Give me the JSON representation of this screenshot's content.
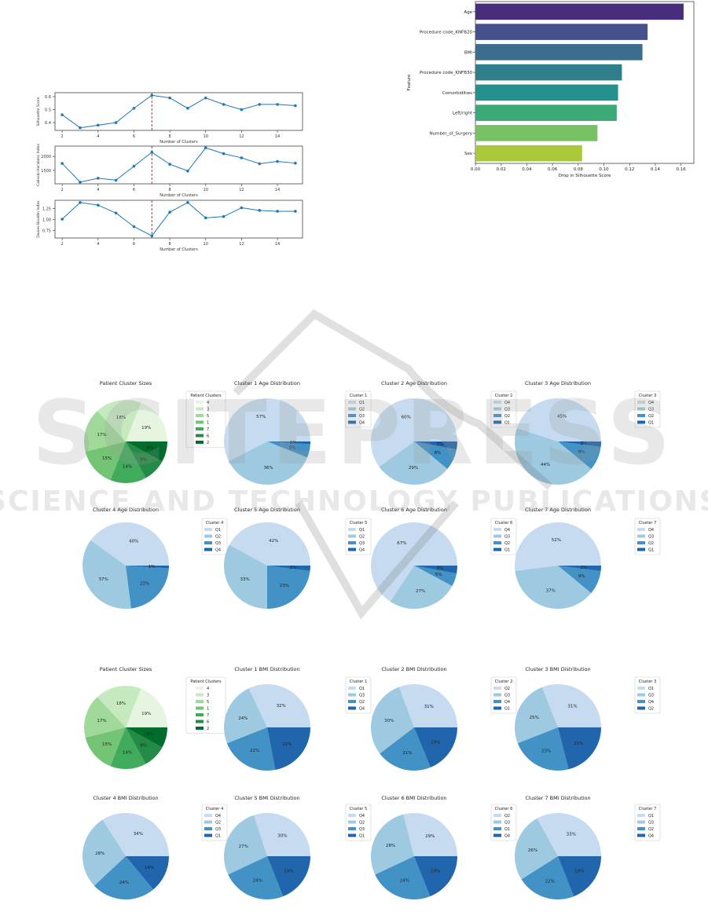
{
  "chart_data": [
    {
      "id": "cluster-metrics",
      "type": "line",
      "panels": [
        {
          "ylabel": "Silhouette Score",
          "xlabel": "Number of Clusters",
          "x": [
            2,
            3,
            4,
            5,
            6,
            7,
            8,
            9,
            10,
            11,
            12,
            13,
            14,
            15
          ],
          "values": [
            0.46,
            0.36,
            0.38,
            0.4,
            0.51,
            0.61,
            0.59,
            0.51,
            0.59,
            0.54,
            0.5,
            0.54,
            0.54,
            0.53
          ],
          "yticks": [
            0.4,
            0.5,
            0.6
          ],
          "ytick_labels": [
            "0.4",
            "0.5",
            "0.6"
          ],
          "ylim": [
            0.34,
            0.63
          ]
        },
        {
          "ylabel": "Calinski-Harabasz Index",
          "xlabel": "Number of Clusters",
          "x": [
            2,
            3,
            4,
            5,
            6,
            7,
            8,
            9,
            10,
            11,
            12,
            13,
            14,
            15
          ],
          "values": [
            1750,
            1080,
            1220,
            1150,
            1650,
            2150,
            1720,
            1480,
            2310,
            2100,
            1950,
            1740,
            1820,
            1760
          ],
          "yticks": [
            1500,
            2000
          ],
          "ytick_labels": [
            "1500",
            "2000"
          ],
          "ylim": [
            1020,
            2370
          ]
        },
        {
          "ylabel": "Davies-Bouldin Index",
          "xlabel": "Number of Clusters",
          "x": [
            2,
            3,
            4,
            5,
            6,
            7,
            8,
            9,
            10,
            11,
            12,
            13,
            14,
            15
          ],
          "values": [
            1.01,
            1.39,
            1.33,
            1.15,
            0.84,
            0.63,
            1.17,
            1.39,
            1.04,
            1.07,
            1.27,
            1.21,
            1.19,
            1.19
          ],
          "yticks": [
            0.75,
            1.0,
            1.25
          ],
          "ytick_labels": [
            "0.75",
            "1.00",
            "1.25"
          ],
          "ylim": [
            0.58,
            1.44
          ]
        }
      ],
      "xticks": [
        2,
        4,
        6,
        8,
        10,
        12,
        14
      ],
      "xlim": [
        1.6,
        15.4
      ],
      "optimal_k": 7,
      "line_color": "#1f77b4",
      "marker_line_color": "#d62728"
    },
    {
      "id": "feature-importance",
      "type": "bar",
      "orientation": "horizontal",
      "categories": [
        "Age",
        "Procedure code_KNFB20",
        "BMI",
        "Procedure code_KNFB30",
        "Comorbidities",
        "Left/right",
        "Number_of_Surgery",
        "Sex"
      ],
      "values": [
        0.162,
        0.134,
        0.13,
        0.114,
        0.111,
        0.11,
        0.095,
        0.083
      ],
      "colors": [
        "#472d7b",
        "#46508b",
        "#3b6d8c",
        "#2e7e8c",
        "#26908c",
        "#3ba877",
        "#79c264",
        "#abc73a"
      ],
      "xlabel": "Drop in Silhouette Score",
      "ylabel": "Feature",
      "xticks": [
        0.0,
        0.02,
        0.04,
        0.06,
        0.08,
        0.1,
        0.12,
        0.14,
        0.16
      ],
      "xtick_labels": [
        "0.00",
        "0.02",
        "0.04",
        "0.06",
        "0.08",
        "0.10",
        "0.12",
        "0.14",
        "0.16"
      ],
      "xlim": [
        0,
        0.17
      ]
    },
    {
      "id": "age-cluster-sizes",
      "type": "pie",
      "title": "Patient Cluster Sizes",
      "legend_title": "Patient Clusters",
      "labels": [
        "4",
        "3",
        "5",
        "1",
        "7",
        "6",
        "2"
      ],
      "values": [
        19,
        18,
        17,
        15,
        14,
        9,
        8
      ],
      "colors": [
        "#e5f5e0",
        "#c7e9c0",
        "#a1d99b",
        "#74c476",
        "#41ab5d",
        "#238b45",
        "#006d2c"
      ]
    },
    {
      "id": "age-c1",
      "type": "pie",
      "title": "Cluster 1 Age Distribution",
      "legend_title": "Cluster 1",
      "labels": [
        "Q1",
        "Q2",
        "Q3",
        "Q4"
      ],
      "values": [
        57,
        36,
        5,
        1
      ]
    },
    {
      "id": "age-c2",
      "type": "pie",
      "title": "Cluster 2 Age Distribution",
      "legend_title": "Cluster 2",
      "labels": [
        "Q4",
        "Q3",
        "Q2",
        "Q1"
      ],
      "values": [
        60,
        29,
        8,
        3
      ]
    },
    {
      "id": "age-c3",
      "type": "pie",
      "title": "Cluster 3 Age Distribution",
      "legend_title": "Cluster 3",
      "labels": [
        "Q4",
        "Q3",
        "Q2",
        "Q1"
      ],
      "values": [
        45,
        44,
        9,
        2
      ]
    },
    {
      "id": "age-c4",
      "type": "pie",
      "title": "Cluster 4 Age Distribution",
      "legend_title": "Cluster 4",
      "labels": [
        "Q1",
        "Q2",
        "Q3",
        "Q4"
      ],
      "values": [
        40,
        37,
        22,
        1
      ]
    },
    {
      "id": "age-c5",
      "type": "pie",
      "title": "Cluster 5 Age Distribution",
      "legend_title": "Cluster 5",
      "labels": [
        "Q1",
        "Q2",
        "Q3",
        "Q4"
      ],
      "values": [
        42,
        33,
        23,
        2
      ]
    },
    {
      "id": "age-c6",
      "type": "pie",
      "title": "Cluster 6 Age Distribution",
      "legend_title": "Cluster 6",
      "labels": [
        "Q4",
        "Q3",
        "Q2",
        "Q1"
      ],
      "values": [
        67,
        27,
        5,
        3
      ]
    },
    {
      "id": "age-c7",
      "type": "pie",
      "title": "Cluster 7 Age Distribution",
      "legend_title": "Cluster 7",
      "labels": [
        "Q4",
        "Q3",
        "Q2",
        "Q1"
      ],
      "values": [
        52,
        37,
        9,
        2
      ]
    },
    {
      "id": "bmi-cluster-sizes",
      "type": "pie",
      "title": "Patient Cluster Sizes",
      "legend_title": "Patient Clusters",
      "labels": [
        "4",
        "3",
        "5",
        "1",
        "7",
        "6",
        "2"
      ],
      "values": [
        19,
        18,
        17,
        15,
        14,
        9,
        8
      ],
      "colors": [
        "#e5f5e0",
        "#c7e9c0",
        "#a1d99b",
        "#74c476",
        "#41ab5d",
        "#238b45",
        "#006d2c"
      ]
    },
    {
      "id": "bmi-c1",
      "type": "pie",
      "title": "Cluster 1 BMI Distribution",
      "legend_title": "Cluster 1",
      "labels": [
        "Q1",
        "Q3",
        "Q2",
        "Q4"
      ],
      "values": [
        32,
        24,
        22,
        22
      ]
    },
    {
      "id": "bmi-c2",
      "type": "pie",
      "title": "Cluster 2 BMI Distribution",
      "legend_title": "Cluster 2",
      "labels": [
        "Q2",
        "Q3",
        "Q4",
        "Q1"
      ],
      "values": [
        31,
        30,
        21,
        19
      ]
    },
    {
      "id": "bmi-c3",
      "type": "pie",
      "title": "Cluster 3 BMI Distribution",
      "legend_title": "Cluster 3",
      "labels": [
        "Q1",
        "Q3",
        "Q4",
        "Q2"
      ],
      "values": [
        31,
        25,
        23,
        21
      ]
    },
    {
      "id": "bmi-c4",
      "type": "pie",
      "title": "Cluster 4 BMI Distribution",
      "legend_title": "Cluster 4",
      "labels": [
        "Q4",
        "Q2",
        "Q3",
        "Q1"
      ],
      "values": [
        34,
        28,
        24,
        14
      ]
    },
    {
      "id": "bmi-c5",
      "type": "pie",
      "title": "Cluster 5 BMI Distribution",
      "legend_title": "Cluster 5",
      "labels": [
        "Q4",
        "Q2",
        "Q3",
        "Q1"
      ],
      "values": [
        30,
        27,
        24,
        19
      ]
    },
    {
      "id": "bmi-c6",
      "type": "pie",
      "title": "Cluster 6 BMI Distribution",
      "legend_title": "Cluster 6",
      "labels": [
        "Q2",
        "Q3",
        "Q1",
        "Q4"
      ],
      "values": [
        29,
        28,
        24,
        19
      ]
    },
    {
      "id": "bmi-c7",
      "type": "pie",
      "title": "Cluster 7 BMI Distribution",
      "legend_title": "Cluster 7",
      "labels": [
        "Q1",
        "Q3",
        "Q2",
        "Q4"
      ],
      "values": [
        33,
        26,
        22,
        19
      ]
    }
  ],
  "blues_palette": [
    "#c6dbef",
    "#9ecae1",
    "#4292c6",
    "#2166ac"
  ],
  "watermark": {
    "line1": "SCITEPRESS",
    "line2": "SCIENCE AND TECHNOLOGY PUBLICATIONS"
  }
}
